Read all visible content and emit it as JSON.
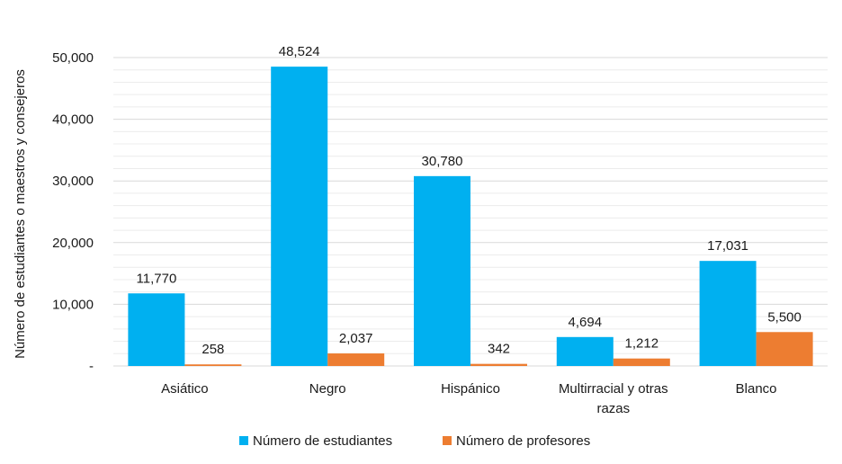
{
  "chart_data": {
    "type": "bar",
    "title": "",
    "xlabel": "",
    "ylabel": "Número de estudiantes o maestros y consejeros",
    "categories": [
      "Asiático",
      "Negro",
      "Hispánico",
      "Multirracial y otras razas",
      "Blanco"
    ],
    "category_lines": [
      [
        "Asiático"
      ],
      [
        "Negro"
      ],
      [
        "Hispánico"
      ],
      [
        "Multirracial y otras",
        "razas"
      ],
      [
        "Blanco"
      ]
    ],
    "series": [
      {
        "name": "Número de estudiantes",
        "color": "#00b0f0",
        "values": [
          11770,
          48524,
          30780,
          4694,
          17031
        ],
        "labels": [
          "11,770",
          "48,524",
          "30,780",
          "4,694",
          "17,031"
        ]
      },
      {
        "name": "Número de profesores",
        "color": "#ed7d31",
        "values": [
          258,
          2037,
          342,
          1212,
          5500
        ],
        "labels": [
          "258",
          "2,037",
          "342",
          "1,212",
          "5,500"
        ]
      }
    ],
    "ylim": [
      0,
      50000
    ],
    "yticks": [
      0,
      10000,
      20000,
      30000,
      40000,
      50000
    ],
    "ytick_labels": [
      "-",
      "10,000",
      "20,000",
      "30,000",
      "40,000",
      "50,000"
    ],
    "grid": true,
    "legend_position": "bottom"
  }
}
